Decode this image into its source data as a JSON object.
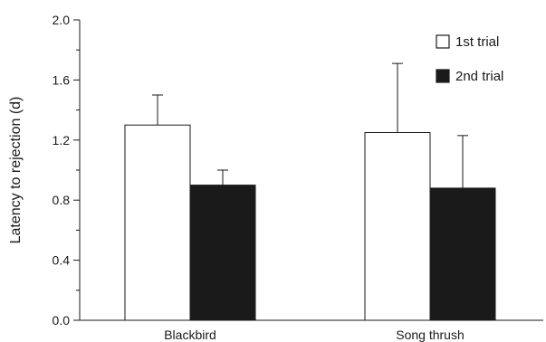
{
  "chart_data": {
    "type": "bar",
    "title": "",
    "xlabel": "",
    "ylabel": "Latency to rejection (d)",
    "ylim": [
      0,
      2.0
    ],
    "yticks": [
      "0.0",
      "0.4",
      "0.8",
      "1.2",
      "1.6",
      "2.0"
    ],
    "categories": [
      "Blackbird",
      "Song thrush"
    ],
    "series": [
      {
        "name": "1st trial",
        "values": [
          1.3,
          1.25
        ],
        "error": [
          0.2,
          0.46
        ],
        "fill": "#ffffff"
      },
      {
        "name": "2nd trial",
        "values": [
          0.9,
          0.88
        ],
        "error": [
          0.1,
          0.35
        ],
        "fill": "#1a1a1a"
      }
    ],
    "legend_position": "top-right",
    "grid": false
  }
}
